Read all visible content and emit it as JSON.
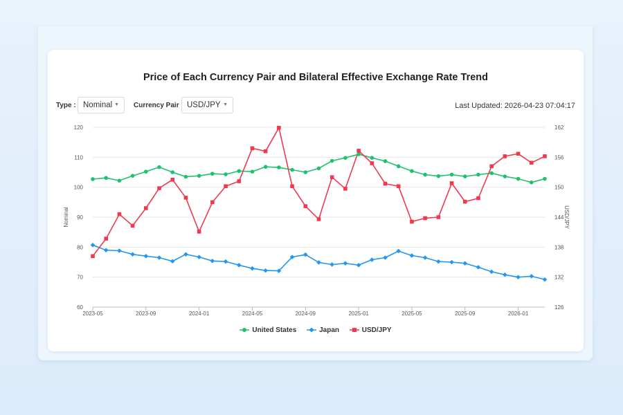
{
  "page": {
    "title": "Price of Each Currency Pair and Bilateral Effective Exchange Rate Trend",
    "type_label": "Type :",
    "type_value": "Nominal",
    "pair_label": "Currency Pair :",
    "pair_value": "USD/JPY",
    "last_updated": "Last Updated: 2026-04-23 07:04:17"
  },
  "colors": {
    "us": "#1fc26b",
    "japan": "#2196f3",
    "usdjpy": "#f0394f"
  },
  "chart_data": {
    "type": "line",
    "title": "Price of Each Currency Pair and Bilateral Effective Exchange Rate Trend",
    "x": [
      "2023-05",
      "2023-06",
      "2023-07",
      "2023-08",
      "2023-09",
      "2023-10",
      "2023-11",
      "2023-12",
      "2024-01",
      "2024-02",
      "2024-03",
      "2024-04",
      "2024-05",
      "2024-06",
      "2024-07",
      "2024-08",
      "2024-09",
      "2024-10",
      "2024-11",
      "2024-12",
      "2025-01",
      "2025-02",
      "2025-03",
      "2025-04",
      "2025-05",
      "2025-06",
      "2025-07",
      "2025-08",
      "2025-09",
      "2025-10",
      "2025-11",
      "2025-12",
      "2026-01",
      "2026-02",
      "2026-03"
    ],
    "x_ticks": [
      "2023-05",
      "2023-09",
      "2024-01",
      "2024-05",
      "2024-09",
      "2025-01",
      "2025-05",
      "2025-09",
      "2026-01"
    ],
    "ylabel_left": "Nominal",
    "ylabel_right": "USD/JPY",
    "ylim_left": [
      60,
      120
    ],
    "yticks_left": [
      60,
      70,
      80,
      90,
      100,
      110,
      120
    ],
    "ylim_right": [
      126,
      162
    ],
    "yticks_right": [
      126,
      132,
      138,
      144,
      150,
      156,
      162
    ],
    "grid": true,
    "legend": "bottom",
    "series": [
      {
        "name": "United States",
        "axis": "left",
        "marker": "circle",
        "values": [
          102.7,
          103.1,
          102.2,
          103.8,
          105.2,
          106.7,
          105.0,
          103.5,
          103.8,
          104.5,
          104.3,
          105.4,
          105.2,
          106.8,
          106.6,
          105.8,
          105.0,
          106.3,
          108.8,
          109.8,
          111.0,
          109.8,
          108.7,
          107.0,
          105.4,
          104.2,
          103.7,
          104.2,
          103.6,
          104.2,
          104.7,
          103.6,
          102.8,
          101.6,
          102.8
        ]
      },
      {
        "name": "Japan",
        "axis": "left",
        "marker": "diamond",
        "values": [
          80.7,
          79.0,
          78.8,
          77.6,
          77.0,
          76.5,
          75.3,
          77.6,
          76.7,
          75.4,
          75.2,
          74.0,
          72.9,
          72.2,
          72.1,
          76.7,
          77.5,
          74.9,
          74.2,
          74.6,
          74.0,
          75.8,
          76.5,
          78.7,
          77.2,
          76.5,
          75.2,
          75.0,
          74.6,
          73.3,
          71.8,
          70.8,
          70.0,
          70.3,
          69.2
        ]
      },
      {
        "name": "USD/JPY",
        "axis": "right",
        "marker": "square",
        "values": [
          136.2,
          139.7,
          144.6,
          142.3,
          145.8,
          149.8,
          151.5,
          147.9,
          141.1,
          147.0,
          150.2,
          151.2,
          157.8,
          157.2,
          161.9,
          150.2,
          146.2,
          143.6,
          152.0,
          149.7,
          157.3,
          154.8,
          150.7,
          150.2,
          143.1,
          143.8,
          144.0,
          150.8,
          147.1,
          147.8,
          154.2,
          156.2,
          156.7,
          154.9,
          156.2
        ]
      }
    ]
  }
}
